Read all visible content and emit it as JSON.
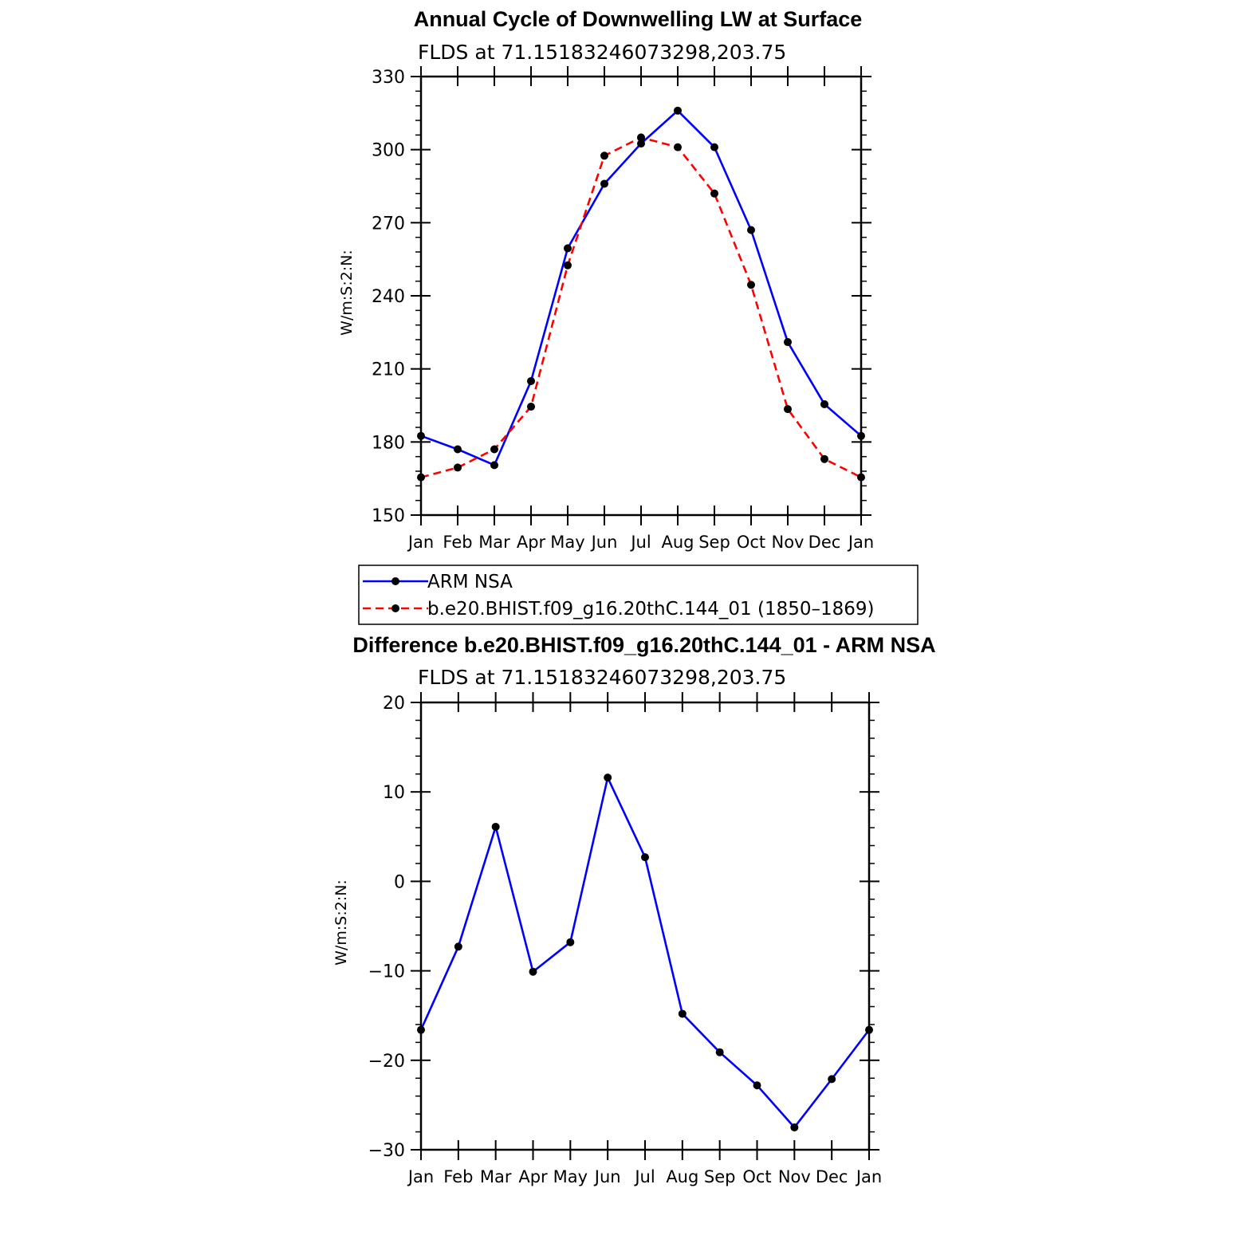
{
  "chart_data": [
    {
      "type": "line",
      "title": "Annual Cycle of Downwelling LW at Surface",
      "subtitle": "FLDS at 71.15183246073298,203.75",
      "xlabel": "",
      "ylabel": "W/m:S:2:N:",
      "categories": [
        "Jan",
        "Feb",
        "Mar",
        "Apr",
        "May",
        "Jun",
        "Jul",
        "Aug",
        "Sep",
        "Oct",
        "Nov",
        "Dec",
        "Jan"
      ],
      "ylim": [
        150,
        330
      ],
      "yticks": [
        150,
        180,
        210,
        240,
        270,
        300,
        330
      ],
      "grid": false,
      "legend_position": "bottom",
      "series": [
        {
          "name": "ARM NSA",
          "color": "#0000ff",
          "dash": "solid",
          "values": [
            182.5,
            177,
            170.5,
            205,
            259.5,
            286,
            302.5,
            316,
            301,
            267,
            221,
            195.5,
            182.5
          ]
        },
        {
          "name": "b.e20.BHIST.f09_g16.20thC.144_01 (1850–1869)",
          "color": "#ff0000",
          "dash": "dashed",
          "values": [
            165.5,
            169.5,
            177,
            194.5,
            252.5,
            297.5,
            305,
            301,
            282,
            244.5,
            193.5,
            173,
            165.5
          ]
        }
      ]
    },
    {
      "type": "line",
      "title": "Difference b.e20.BHIST.f09_g16.20thC.144_01 - ARM NSA",
      "subtitle": "FLDS at 71.15183246073298,203.75",
      "xlabel": "",
      "ylabel": "W/m:S:2:N:",
      "categories": [
        "Jan",
        "Feb",
        "Mar",
        "Apr",
        "May",
        "Jun",
        "Jul",
        "Aug",
        "Sep",
        "Oct",
        "Nov",
        "Dec",
        "Jan"
      ],
      "ylim": [
        -30,
        20
      ],
      "yticks": [
        -30,
        -20,
        -10,
        0,
        10,
        20
      ],
      "ytick_labels": [
        "−30",
        "−20",
        "−10",
        "0",
        "10",
        "20"
      ],
      "grid": false,
      "series": [
        {
          "color": "#0000ff",
          "dash": "solid",
          "values": [
            -16.6,
            -7.3,
            6.1,
            -10.1,
            -6.8,
            11.6,
            2.7,
            -14.8,
            -19.1,
            -22.8,
            -27.5,
            -22.1,
            -16.6
          ]
        }
      ]
    }
  ]
}
